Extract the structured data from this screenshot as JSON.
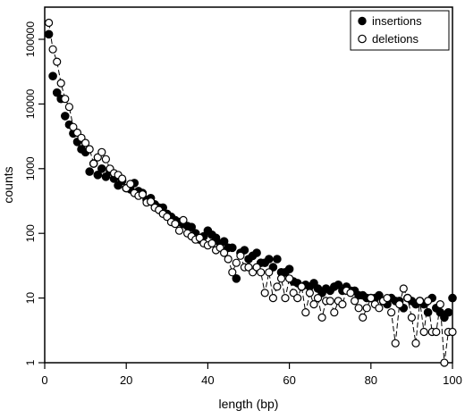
{
  "chart_data": {
    "type": "scatter",
    "xlabel": "length (bp)",
    "ylabel": "counts",
    "xlim": [
      0,
      100
    ],
    "ylim": [
      1,
      300000
    ],
    "yscale": "log",
    "grid": false,
    "legend_position": "top-right",
    "x_ticks": [
      "0",
      "20",
      "40",
      "60",
      "80",
      "100"
    ],
    "y_ticks": [
      "1",
      "10",
      "100",
      "1000",
      "10000",
      "100000"
    ],
    "series": [
      {
        "name": "insertions",
        "marker": "filled-circle",
        "color": "#000000",
        "x": [
          1,
          2,
          3,
          4,
          5,
          6,
          7,
          8,
          9,
          10,
          11,
          12,
          13,
          14,
          15,
          16,
          17,
          18,
          19,
          20,
          21,
          22,
          23,
          24,
          25,
          26,
          27,
          28,
          29,
          30,
          31,
          32,
          33,
          34,
          35,
          36,
          37,
          38,
          39,
          40,
          41,
          42,
          43,
          44,
          45,
          46,
          47,
          48,
          49,
          50,
          51,
          52,
          53,
          54,
          55,
          56,
          57,
          58,
          59,
          60,
          61,
          62,
          63,
          64,
          65,
          66,
          67,
          68,
          69,
          70,
          71,
          72,
          73,
          74,
          75,
          76,
          77,
          78,
          79,
          80,
          81,
          82,
          83,
          84,
          85,
          86,
          87,
          88,
          89,
          90,
          91,
          92,
          93,
          94,
          95,
          96,
          97,
          98,
          99,
          100
        ],
        "y": [
          120000,
          27000,
          15000,
          12000,
          6500,
          4800,
          3500,
          2600,
          2000,
          1800,
          900,
          1200,
          800,
          1000,
          750,
          900,
          700,
          550,
          650,
          500,
          480,
          600,
          450,
          420,
          330,
          350,
          280,
          250,
          250,
          200,
          180,
          160,
          150,
          140,
          130,
          125,
          100,
          80,
          90,
          110,
          95,
          85,
          70,
          75,
          60,
          60,
          20,
          50,
          55,
          40,
          45,
          50,
          35,
          35,
          40,
          30,
          40,
          25,
          25,
          28,
          18,
          17,
          15,
          16,
          15,
          17,
          14,
          12,
          14,
          13,
          15,
          16,
          13,
          15,
          13,
          13,
          11,
          11,
          10,
          10,
          10,
          11,
          9,
          8,
          10,
          9,
          9,
          7,
          10,
          9,
          8,
          9,
          8,
          6,
          10,
          7,
          6,
          5,
          6,
          10
        ]
      },
      {
        "name": "deletions",
        "marker": "open-circle",
        "color": "#000000",
        "x": [
          1,
          2,
          3,
          4,
          5,
          6,
          7,
          8,
          9,
          10,
          11,
          12,
          13,
          14,
          15,
          16,
          17,
          18,
          19,
          20,
          21,
          22,
          23,
          24,
          25,
          26,
          27,
          28,
          29,
          30,
          31,
          32,
          33,
          34,
          35,
          36,
          37,
          38,
          39,
          40,
          41,
          42,
          43,
          44,
          45,
          46,
          47,
          48,
          49,
          50,
          51,
          52,
          53,
          54,
          55,
          56,
          57,
          58,
          59,
          60,
          61,
          62,
          63,
          64,
          65,
          66,
          67,
          68,
          69,
          70,
          71,
          72,
          73,
          74,
          75,
          76,
          77,
          78,
          79,
          80,
          81,
          82,
          83,
          84,
          85,
          86,
          87,
          88,
          89,
          90,
          91,
          92,
          93,
          94,
          95,
          96,
          97,
          98,
          99,
          100
        ],
        "y": [
          180000,
          70000,
          45000,
          21000,
          12000,
          9000,
          4400,
          3600,
          3000,
          2500,
          2000,
          1200,
          1500,
          1800,
          1400,
          1000,
          850,
          800,
          700,
          500,
          580,
          420,
          380,
          400,
          300,
          310,
          250,
          230,
          200,
          180,
          150,
          140,
          110,
          160,
          100,
          90,
          80,
          85,
          70,
          65,
          70,
          55,
          60,
          50,
          40,
          25,
          35,
          45,
          30,
          30,
          25,
          30,
          25,
          12,
          25,
          10,
          15,
          20,
          10,
          20,
          12,
          10,
          15,
          6,
          12,
          8,
          10,
          5,
          9,
          9,
          6,
          9,
          8,
          13,
          12,
          9,
          7,
          5,
          7,
          10,
          8,
          7,
          9,
          10,
          6,
          2,
          8,
          14,
          10,
          5,
          2,
          9,
          3,
          9,
          3,
          3,
          8,
          1,
          3,
          3
        ]
      }
    ]
  }
}
